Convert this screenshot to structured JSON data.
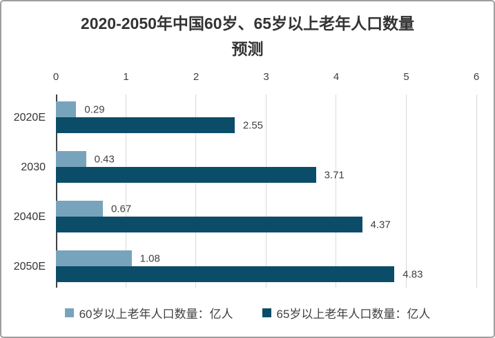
{
  "title": {
    "full": "2020-2050年中国60岁、65岁以上老年人口数量预测",
    "line1": "2020-2050年中国60岁、65岁以上老年人口数量",
    "line2": "预测"
  },
  "chart_data": {
    "type": "bar",
    "orientation": "horizontal",
    "title": "2020-2050年中国60岁、65岁以上老年人口数量预测",
    "categories": [
      "2020E",
      "2030",
      "2040E",
      "2050E"
    ],
    "series": [
      {
        "name": "60岁以上老年人口数量：亿人",
        "color": "#78A3BC",
        "values": [
          0.29,
          0.43,
          0.67,
          1.08
        ]
      },
      {
        "name": "65岁以上老年人口数量：亿人",
        "color": "#0B4D69",
        "values": [
          2.55,
          3.71,
          4.37,
          4.83
        ]
      }
    ],
    "x_ticks": [
      0,
      1,
      2,
      3,
      4,
      5,
      6
    ],
    "xlim": [
      0,
      6
    ],
    "grid": "vertical-only",
    "legend_position": "bottom",
    "value_labels": "2-decimals"
  },
  "colors": {
    "background": "#ffffff",
    "border": "#9e9e9e",
    "gridline": "#d9d9d9",
    "axis": "#404040",
    "title_text": "#333333",
    "label_text": "#404040"
  }
}
